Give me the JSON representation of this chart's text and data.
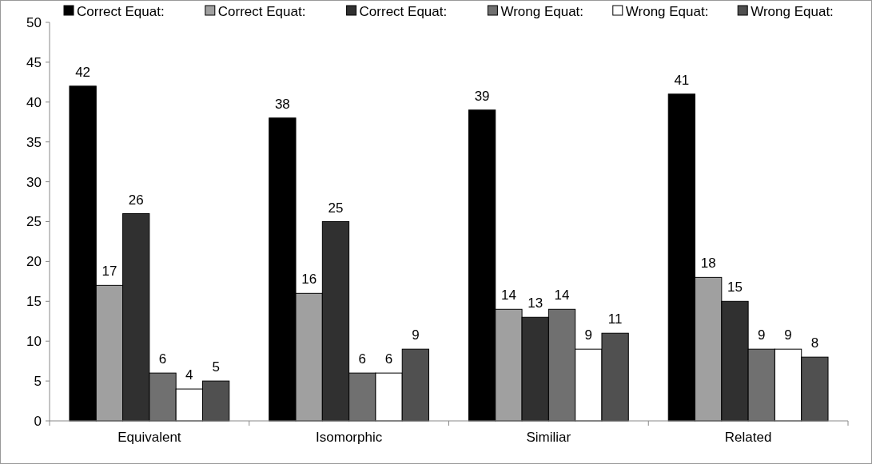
{
  "chart_data": {
    "type": "bar",
    "categories": [
      "Equivalent",
      "Isomorphic",
      "Similiar",
      "Related"
    ],
    "series": [
      {
        "name": "Correct Equat:",
        "color": "#000000",
        "values": [
          42,
          38,
          39,
          41
        ]
      },
      {
        "name": "Correct Equat:",
        "color": "#a0a0a0",
        "values": [
          17,
          16,
          14,
          18
        ]
      },
      {
        "name": "Correct Equat:",
        "color": "#303030",
        "values": [
          26,
          25,
          13,
          15
        ]
      },
      {
        "name": "Wrong Equat:",
        "color": "#707070",
        "values": [
          6,
          6,
          14,
          9
        ]
      },
      {
        "name": "Wrong Equat:",
        "color": "#ffffff",
        "values": [
          4,
          6,
          9,
          9
        ]
      },
      {
        "name": "Wrong Equat:",
        "color": "#505050",
        "values": [
          5,
          9,
          11,
          8
        ]
      }
    ],
    "ylim": [
      0,
      50
    ],
    "yticks": [
      0,
      5,
      10,
      15,
      20,
      25,
      30,
      35,
      40,
      45,
      50
    ],
    "grid": false,
    "legend": "top",
    "data_labels": true
  }
}
